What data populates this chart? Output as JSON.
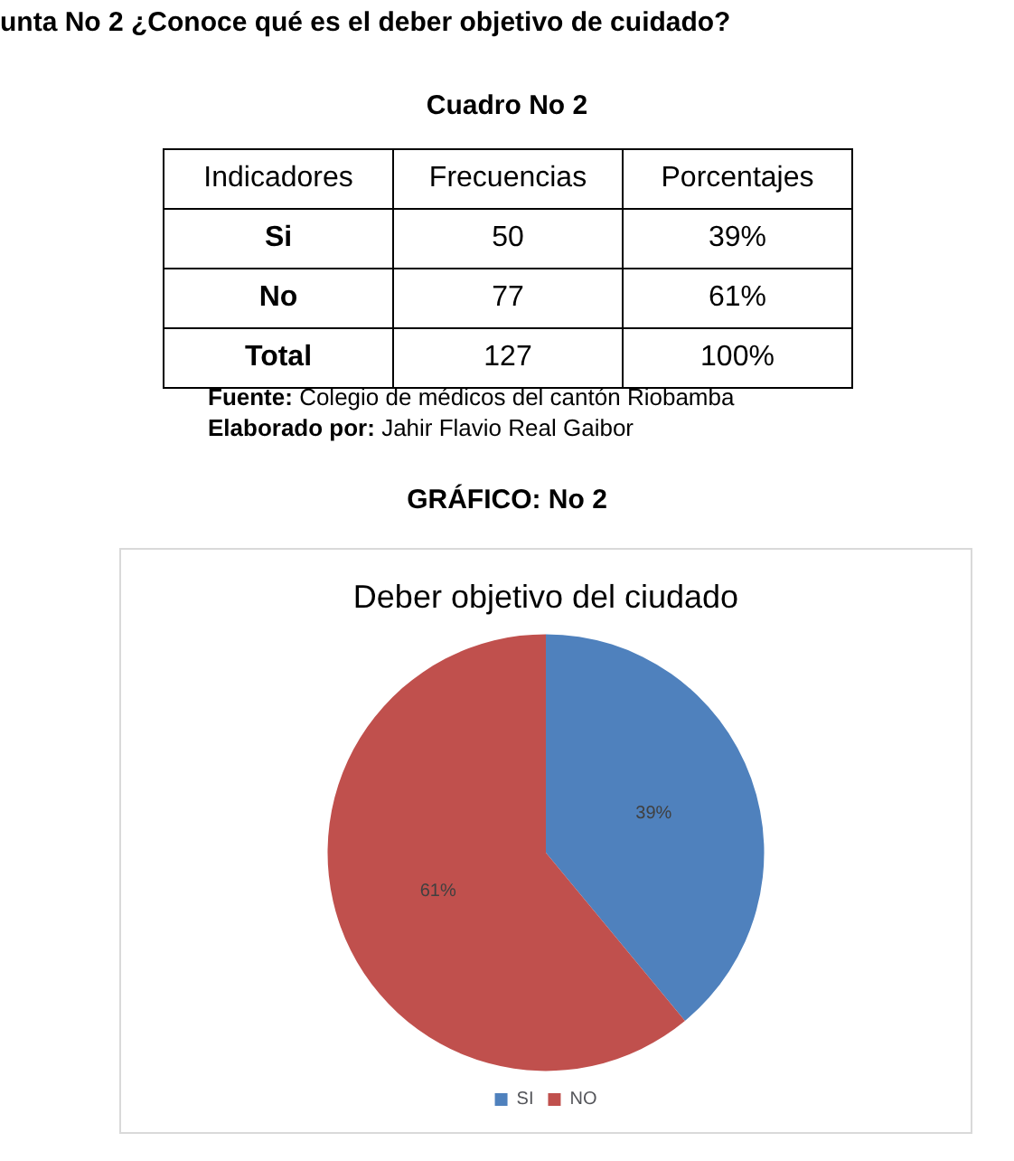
{
  "chart_data": [
    {
      "type": "other",
      "title": "unta No 2 ¿Conoce qué es el deber objetivo de cuidado?",
      "subtitle": "Cuadro No 2",
      "categories": [
        "Indicadores",
        "Frecuencias",
        "Porcentajes"
      ],
      "y_categories": [
        "Si",
        "No",
        "Total"
      ],
      "cell_labels": [
        [
          "50",
          "39%"
        ],
        [
          "77",
          "61%"
        ],
        [
          "127",
          "100%"
        ]
      ],
      "annotations": [
        "Fuente: Colegio de médicos del cantón Riobamba",
        "Elaborado por: Jahir Flavio Real Gaibor",
        "GRÁFICO: No 2"
      ]
    },
    {
      "type": "pie",
      "title": "Deber objetivo del ciudado",
      "categories": [
        "SI",
        "NO"
      ],
      "values": [
        39,
        61
      ],
      "value_labels": [
        "39%",
        "61%"
      ],
      "colors": [
        "#4f81bd",
        "#c0504d"
      ],
      "legend": "bottom"
    }
  ]
}
